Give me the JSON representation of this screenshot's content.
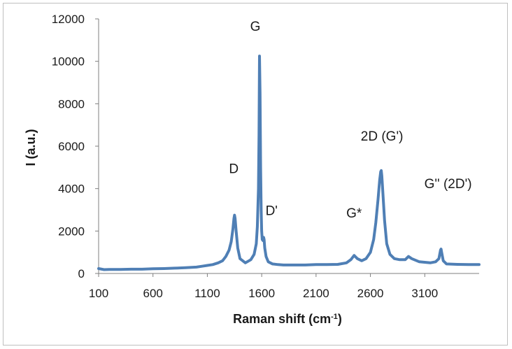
{
  "chart_data": {
    "type": "line",
    "xlabel": "Raman shift (cm",
    "xlabel_sup": "-1",
    "xlabel_close": ")",
    "ylabel": "I (a.u.)",
    "xlim": [
      100,
      3600
    ],
    "ylim": [
      0,
      12000
    ],
    "x_ticks": [
      100,
      600,
      1100,
      1600,
      2100,
      2600,
      3100
    ],
    "y_ticks": [
      0,
      2000,
      4000,
      6000,
      8000,
      10000,
      12000
    ],
    "grid": false,
    "series_color": "#4f7fb5",
    "peaks": [
      {
        "label": "D",
        "x": 1350,
        "y": 2750
      },
      {
        "label": "G",
        "x": 1580,
        "y": 10250
      },
      {
        "label": "D'",
        "x": 1620,
        "y": 1700
      },
      {
        "label": "G*",
        "x": 2450,
        "y": 850
      },
      {
        "label": "2D (G')",
        "x": 2700,
        "y": 4850
      },
      {
        "label": "G'' (2D')",
        "x": 3250,
        "y": 1150
      }
    ],
    "series": [
      {
        "x": [
          100,
          150,
          200,
          300,
          400,
          500,
          600,
          700,
          800,
          900,
          1000,
          1050,
          1100,
          1150,
          1200,
          1240,
          1270,
          1300,
          1320,
          1335,
          1345,
          1350,
          1355,
          1365,
          1380,
          1400,
          1450,
          1500,
          1530,
          1550,
          1560,
          1570,
          1575,
          1580,
          1585,
          1590,
          1595,
          1600,
          1605,
          1612,
          1618,
          1622,
          1628,
          1640,
          1660,
          1700,
          1750,
          1800,
          1900,
          2000,
          2100,
          2200,
          2300,
          2380,
          2420,
          2450,
          2480,
          2520,
          2560,
          2600,
          2630,
          2650,
          2670,
          2685,
          2695,
          2700,
          2705,
          2715,
          2730,
          2750,
          2780,
          2820,
          2870,
          2920,
          2950,
          2980,
          3050,
          3150,
          3200,
          3230,
          3245,
          3250,
          3255,
          3270,
          3300,
          3400,
          3500,
          3600
        ],
        "values": [
          230,
          180,
          190,
          190,
          200,
          200,
          220,
          230,
          250,
          270,
          300,
          340,
          380,
          420,
          500,
          600,
          800,
          1100,
          1500,
          2100,
          2600,
          2750,
          2600,
          2000,
          1200,
          700,
          500,
          650,
          900,
          1400,
          2200,
          4000,
          6500,
          10250,
          8500,
          5000,
          3000,
          2000,
          1600,
          1550,
          1700,
          1600,
          1200,
          800,
          550,
          450,
          420,
          400,
          400,
          400,
          420,
          420,
          430,
          500,
          650,
          850,
          700,
          600,
          700,
          1000,
          1600,
          2400,
          3500,
          4400,
          4800,
          4850,
          4600,
          3800,
          2500,
          1400,
          900,
          700,
          650,
          650,
          800,
          700,
          550,
          500,
          550,
          700,
          1100,
          1150,
          1000,
          600,
          450,
          430,
          420,
          420
        ]
      }
    ]
  }
}
